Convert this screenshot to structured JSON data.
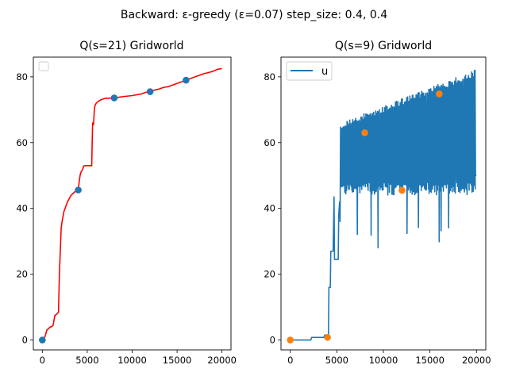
{
  "figure": {
    "suptitle": "Backward: ε-greedy (ε=0.07) step_size: 0.4, 0.4"
  },
  "chart_data": [
    {
      "type": "line",
      "title": "Q(s=21) Gridworld",
      "xlabel": "",
      "ylabel": "",
      "xlim": [
        -1000,
        21000
      ],
      "ylim": [
        -3,
        86
      ],
      "xticks": [
        0,
        5000,
        10000,
        15000,
        20000
      ],
      "yticks": [
        0,
        20,
        40,
        60,
        80
      ],
      "xtick_labels": [
        "0",
        "5000",
        "10000",
        "15000",
        "20000"
      ],
      "ytick_labels": [
        "0",
        "20",
        "40",
        "60",
        "80"
      ],
      "legend": {
        "placement": "top-left",
        "entries": []
      },
      "grid": false,
      "series": [
        {
          "kind": "line",
          "color": "#ff0000",
          "x": [
            0,
            300,
            500,
            700,
            900,
            1000,
            1200,
            1400,
            1600,
            1800,
            1900,
            2000,
            2100,
            2200,
            2400,
            2600,
            2800,
            3000,
            3200,
            3400,
            3600,
            3800,
            4000,
            4100,
            4200,
            4300,
            4500,
            4600,
            4800,
            5000,
            5300,
            5500,
            5550,
            5600,
            5700,
            5800,
            5900,
            6000,
            6200,
            6500,
            7000,
            7500,
            8000,
            9000,
            10000,
            11000,
            11500,
            12000,
            12500,
            13000,
            13500,
            14000,
            14500,
            15000,
            15500,
            16000,
            16500,
            17000,
            17500,
            18000,
            18500,
            19000,
            19500,
            20000
          ],
          "y": [
            0,
            1,
            3,
            3.5,
            4,
            4,
            4.5,
            7.5,
            7.8,
            8.5,
            20,
            27,
            34,
            36,
            39,
            40.5,
            42,
            43,
            44,
            44.5,
            45,
            45.5,
            45.6,
            48,
            50,
            51,
            52,
            52.9,
            53,
            53,
            53,
            53,
            60,
            66,
            65.5,
            70.5,
            71.5,
            72,
            72.5,
            73,
            73.5,
            73.5,
            73.6,
            74,
            74.3,
            74.8,
            75.3,
            75.5,
            76,
            76.3,
            76.8,
            77,
            77.5,
            78,
            78.5,
            79,
            79.5,
            80,
            80.5,
            81,
            81.3,
            81.7,
            82.3,
            82.5
          ]
        },
        {
          "kind": "scatter",
          "color": "#1f77b4",
          "x": [
            0,
            4000,
            8000,
            12000,
            16000
          ],
          "y": [
            0,
            45.6,
            73.6,
            75.5,
            79
          ]
        }
      ]
    },
    {
      "type": "line",
      "title": "Q(s=9) Gridworld",
      "xlabel": "",
      "ylabel": "",
      "xlim": [
        -1000,
        21000
      ],
      "ylim": [
        -3,
        86
      ],
      "xticks": [
        0,
        5000,
        10000,
        15000,
        20000
      ],
      "yticks": [
        0,
        20,
        40,
        60,
        80
      ],
      "xtick_labels": [
        "0",
        "5000",
        "10000",
        "15000",
        "20000"
      ],
      "ytick_labels": [
        "0",
        "20",
        "40",
        "60",
        "80"
      ],
      "legend": {
        "placement": "top-left",
        "entries": [
          "u"
        ]
      },
      "grid": false,
      "series": [
        {
          "kind": "line",
          "name": "u",
          "color": "#1f77b4",
          "note_segments": "step-like oscillating trace"
        },
        {
          "kind": "scatter",
          "color": "#ff7f0e",
          "x": [
            0,
            4000,
            8000,
            12000,
            16000
          ],
          "y": [
            0,
            0.8,
            63,
            45.5,
            74.8
          ]
        }
      ]
    }
  ]
}
